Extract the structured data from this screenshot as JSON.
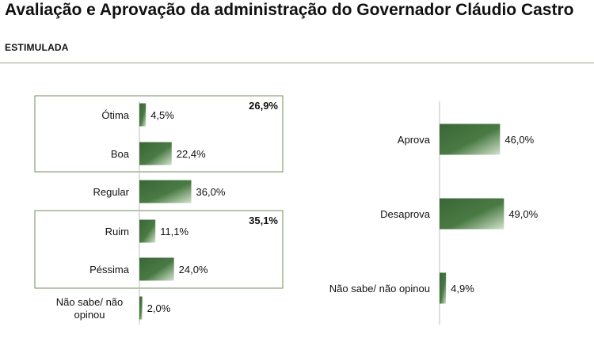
{
  "header": {
    "title": "Avaliação e Aprovação da administração do Governador Cláudio Castro",
    "subtitle": "ESTIMULADA"
  },
  "colors": {
    "bar_dark": "#3f6b3b",
    "bar_light": "#cfdfc9",
    "frame": "#6f8f5e"
  },
  "chart_data": [
    {
      "type": "bar",
      "orientation": "horizontal",
      "categories": [
        "Ótima",
        "Boa",
        "Regular",
        "Ruim",
        "Péssima",
        "Não sabe/ não opinou"
      ],
      "values": [
        4.5,
        22.4,
        36.0,
        11.1,
        24.0,
        2.0
      ],
      "value_labels": [
        "4,5%",
        "22,4%",
        "36,0%",
        "11,1%",
        "24,0%",
        "2,0%"
      ],
      "groups": [
        {
          "label": "26,9%",
          "categories": [
            "Ótima",
            "Boa"
          ]
        },
        {
          "label": "35,1%",
          "categories": [
            "Ruim",
            "Péssima"
          ]
        }
      ],
      "xlim": [
        0,
        100
      ]
    },
    {
      "type": "bar",
      "orientation": "horizontal",
      "categories": [
        "Aprova",
        "Desaprova",
        "Não sabe/ não opinou"
      ],
      "values": [
        46.0,
        49.0,
        4.9
      ],
      "value_labels": [
        "46,0%",
        "49,0%",
        "4,9%"
      ],
      "xlim": [
        0,
        100
      ]
    }
  ]
}
